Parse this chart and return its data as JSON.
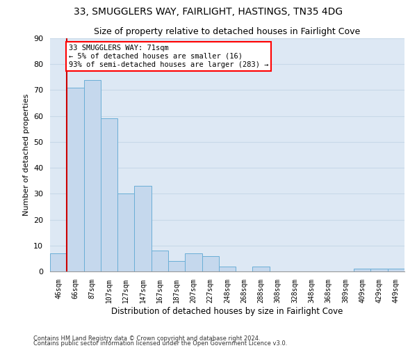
{
  "title1": "33, SMUGGLERS WAY, FAIRLIGHT, HASTINGS, TN35 4DG",
  "title2": "Size of property relative to detached houses in Fairlight Cove",
  "xlabel": "Distribution of detached houses by size in Fairlight Cove",
  "ylabel": "Number of detached properties",
  "categories": [
    "46sqm",
    "66sqm",
    "87sqm",
    "107sqm",
    "127sqm",
    "147sqm",
    "167sqm",
    "187sqm",
    "207sqm",
    "227sqm",
    "248sqm",
    "268sqm",
    "288sqm",
    "308sqm",
    "328sqm",
    "348sqm",
    "368sqm",
    "389sqm",
    "409sqm",
    "429sqm",
    "449sqm"
  ],
  "values": [
    7,
    71,
    74,
    59,
    30,
    33,
    8,
    4,
    7,
    6,
    2,
    0,
    2,
    0,
    0,
    0,
    0,
    0,
    1,
    1,
    1
  ],
  "bar_color": "#c5d8ed",
  "bar_edge_color": "#6aaed6",
  "highlight_color": "#cc0000",
  "annotation_line1": "33 SMUGGLERS WAY: 71sqm",
  "annotation_line2": "← 5% of detached houses are smaller (16)",
  "annotation_line3": "93% of semi-detached houses are larger (283) →",
  "footer1": "Contains HM Land Registry data © Crown copyright and database right 2024.",
  "footer2": "Contains public sector information licensed under the Open Government Licence v3.0.",
  "ylim": [
    0,
    90
  ],
  "yticks": [
    0,
    10,
    20,
    30,
    40,
    50,
    60,
    70,
    80,
    90
  ],
  "grid_color": "#c8d8e8",
  "background_color": "#dde8f4",
  "title1_fontsize": 10,
  "title2_fontsize": 9
}
